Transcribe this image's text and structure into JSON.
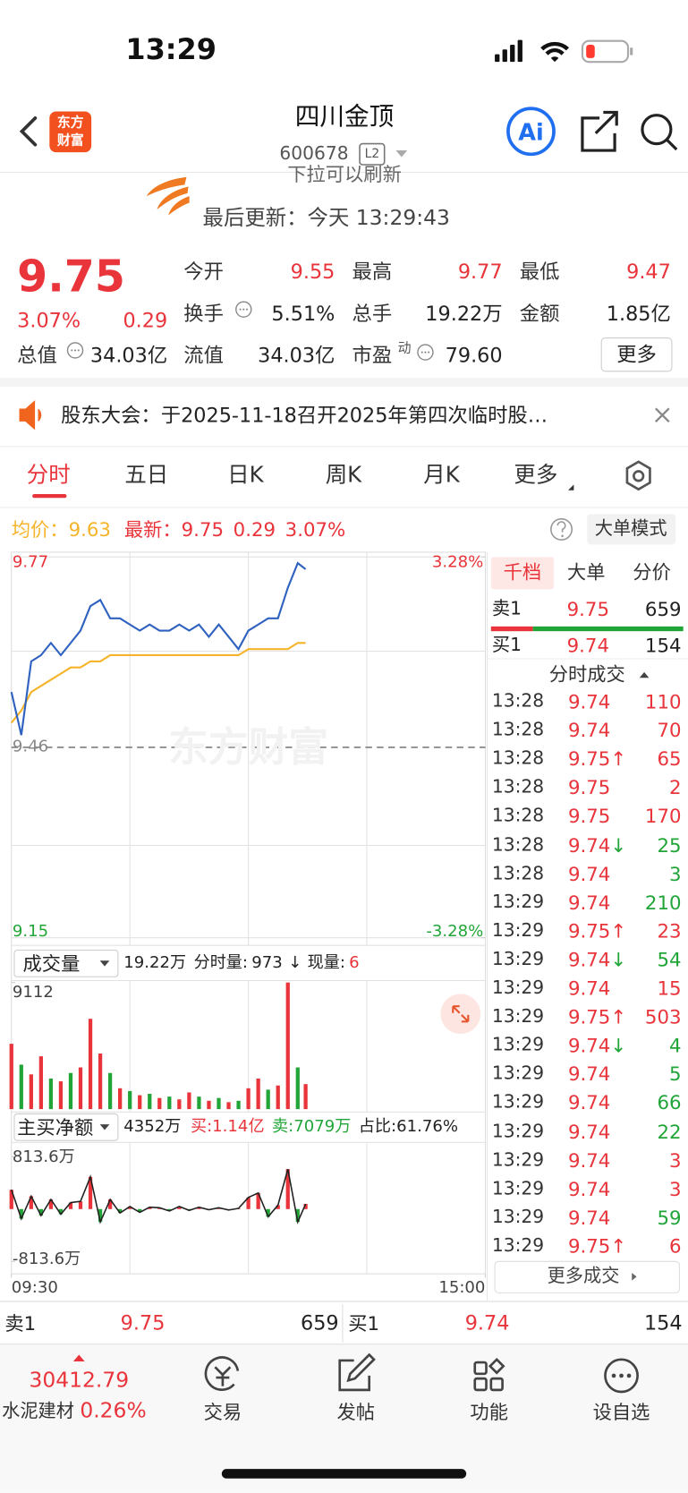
{
  "status_bar": {
    "time": "13:29"
  },
  "header": {
    "logo": [
      "东方",
      "财富"
    ],
    "name": "四川金顶",
    "code": "600678",
    "level": "L2",
    "ai": "Ai"
  },
  "refresh": {
    "hint": "下拉可以刷新",
    "last_update": "最后更新：今天 13:29:43"
  },
  "quote": {
    "price": "9.75",
    "change_pct": "3.07%",
    "change": "0.29",
    "stats": [
      {
        "label": "今开",
        "value": "9.55"
      },
      {
        "label": "最高",
        "value": "9.77"
      },
      {
        "label": "最低",
        "value": "9.47"
      },
      {
        "label": "换手",
        "value": "5.51%"
      },
      {
        "label": "总手",
        "value": "19.22万"
      },
      {
        "label": "金额",
        "value": "1.85亿"
      },
      {
        "label": "总值",
        "value": "34.03亿"
      },
      {
        "label": "流值",
        "value": "34.03亿"
      },
      {
        "label": "市盈",
        "sup": "动",
        "value": "79.60"
      }
    ],
    "more": "更多"
  },
  "notice": {
    "text": "股东大会：于2025-11-18召开2025年第四次临时股…"
  },
  "tabs": [
    "分时",
    "五日",
    "日K",
    "周K",
    "月K",
    "更多"
  ],
  "summary": {
    "avg_label": "均价：",
    "avg": "9.63",
    "latest_label": "最新：",
    "latest": "9.75",
    "change": "0.29",
    "change_pct": "3.07%",
    "mode": "大单模式"
  },
  "price_chart": {
    "watermark": "东方财富",
    "xlim": [
      0,
      240
    ],
    "xticks": [
      {
        "value": 0,
        "label": "09:30"
      },
      {
        "value": 240,
        "label": "15:00"
      }
    ],
    "ylim": [
      9.15,
      9.77
    ],
    "yticks": [
      9.15,
      9.46,
      9.77
    ],
    "y2lim": [
      -3.28,
      3.28
    ],
    "y2ticks": [
      {
        "value": -3.28,
        "label": "-3.28%"
      },
      {
        "value": 3.28,
        "label": "3.28%"
      }
    ],
    "x": [
      0,
      5,
      10,
      15,
      20,
      25,
      30,
      35,
      40,
      45,
      50,
      55,
      60,
      65,
      70,
      75,
      80,
      85,
      90,
      95,
      100,
      105,
      110,
      115,
      120,
      125,
      130,
      135,
      140,
      145,
      149
    ],
    "price": {
      "color": "#2f62c0",
      "values": [
        9.55,
        9.48,
        9.6,
        9.61,
        9.63,
        9.61,
        9.63,
        9.65,
        9.69,
        9.7,
        9.67,
        9.67,
        9.66,
        9.65,
        9.66,
        9.65,
        9.65,
        9.66,
        9.65,
        9.66,
        9.64,
        9.66,
        9.64,
        9.62,
        9.65,
        9.66,
        9.67,
        9.67,
        9.72,
        9.76,
        9.75
      ]
    },
    "avg": {
      "color": "#f5b42a",
      "values": [
        9.5,
        9.52,
        9.55,
        9.56,
        9.57,
        9.58,
        9.59,
        9.59,
        9.6,
        9.6,
        9.61,
        9.61,
        9.61,
        9.61,
        9.61,
        9.61,
        9.61,
        9.61,
        9.61,
        9.61,
        9.61,
        9.61,
        9.61,
        9.61,
        9.62,
        9.62,
        9.62,
        9.62,
        9.62,
        9.63,
        9.63
      ]
    }
  },
  "volume_chart": {
    "selector": "成交量",
    "total": "19.22万",
    "minute_label": "分时量:",
    "minute_value": "973",
    "minute_arrow": "↓",
    "current_label": "现量:",
    "current_value": "6",
    "ylim": [
      0,
      9112
    ],
    "yticks": [
      9112
    ],
    "x": [
      0,
      5,
      10,
      15,
      20,
      25,
      30,
      35,
      40,
      45,
      50,
      55,
      60,
      65,
      70,
      75,
      80,
      85,
      90,
      95,
      100,
      105,
      110,
      115,
      120,
      125,
      130,
      135,
      140,
      145,
      149
    ],
    "values": [
      4700,
      3200,
      2500,
      3800,
      2200,
      2000,
      2600,
      3000,
      6500,
      4000,
      2600,
      1500,
      1300,
      1000,
      1100,
      800,
      900,
      700,
      1200,
      900,
      600,
      800,
      500,
      600,
      1500,
      2200,
      1400,
      1700,
      9112,
      3000,
      1800
    ],
    "up": [
      true,
      false,
      true,
      true,
      false,
      true,
      false,
      true,
      true,
      true,
      false,
      true,
      false,
      true,
      false,
      true,
      false,
      true,
      true,
      false,
      true,
      false,
      true,
      false,
      true,
      true,
      false,
      true,
      true,
      false,
      true
    ],
    "up_color": "#e8343a",
    "down_color": "#22a538"
  },
  "flow_chart": {
    "selector": "主买净额",
    "net": "4352万",
    "buy": "买:1.14亿",
    "sell": "卖:7079万",
    "ratio": "占比:61.76%",
    "ylim": [
      -813.6,
      813.6
    ],
    "yticks": [
      {
        "value": -813.6,
        "label": "-813.6万"
      },
      {
        "value": 813.6,
        "label": "813.6万"
      }
    ],
    "x": [
      0,
      5,
      10,
      15,
      20,
      25,
      30,
      35,
      40,
      45,
      50,
      55,
      60,
      65,
      70,
      75,
      80,
      85,
      90,
      95,
      100,
      105,
      110,
      115,
      120,
      125,
      130,
      135,
      140,
      145,
      149
    ],
    "values": [
      300,
      -150,
      200,
      -100,
      150,
      -80,
      100,
      120,
      500,
      -200,
      150,
      -60,
      40,
      -50,
      30,
      20,
      -30,
      40,
      -20,
      30,
      -10,
      20,
      -15,
      10,
      180,
      250,
      -120,
      60,
      620,
      -200,
      80
    ]
  },
  "order_book": {
    "tabs": [
      "千档",
      "大单",
      "分价"
    ],
    "sell1": {
      "label": "卖1",
      "price": "9.75",
      "volume": "659"
    },
    "buy1": {
      "label": "买1",
      "price": "9.74",
      "volume": "154"
    },
    "trades_title": "分时成交",
    "trades": [
      {
        "time": "13:28",
        "price": "9.74",
        "volume": "110",
        "up": true
      },
      {
        "time": "13:28",
        "price": "9.74",
        "volume": "70",
        "up": true
      },
      {
        "time": "13:28",
        "price": "9.75",
        "arrow": "↑",
        "volume": "65",
        "up": true
      },
      {
        "time": "13:28",
        "price": "9.75",
        "volume": "2",
        "up": true
      },
      {
        "time": "13:28",
        "price": "9.75",
        "volume": "170",
        "up": true
      },
      {
        "time": "13:28",
        "price": "9.74",
        "arrow": "↓",
        "volume": "25",
        "up": false
      },
      {
        "time": "13:28",
        "price": "9.74",
        "volume": "3",
        "up": false
      },
      {
        "time": "13:29",
        "price": "9.74",
        "volume": "210",
        "up": false
      },
      {
        "time": "13:29",
        "price": "9.75",
        "arrow": "↑",
        "volume": "23",
        "up": true
      },
      {
        "time": "13:29",
        "price": "9.74",
        "arrow": "↓",
        "volume": "54",
        "up": false
      },
      {
        "time": "13:29",
        "price": "9.74",
        "volume": "15",
        "up": true
      },
      {
        "time": "13:29",
        "price": "9.75",
        "arrow": "↑",
        "volume": "503",
        "up": true
      },
      {
        "time": "13:29",
        "price": "9.74",
        "arrow": "↓",
        "volume": "4",
        "up": false
      },
      {
        "time": "13:29",
        "price": "9.74",
        "volume": "5",
        "up": false
      },
      {
        "time": "13:29",
        "price": "9.74",
        "volume": "66",
        "up": false
      },
      {
        "time": "13:29",
        "price": "9.74",
        "volume": "22",
        "up": false
      },
      {
        "time": "13:29",
        "price": "9.74",
        "volume": "3",
        "up": true
      },
      {
        "time": "13:29",
        "price": "9.74",
        "volume": "3",
        "up": true
      },
      {
        "time": "13:29",
        "price": "9.74",
        "volume": "59",
        "up": false
      },
      {
        "time": "13:29",
        "price": "9.75",
        "arrow": "↑",
        "volume": "6",
        "up": true
      }
    ],
    "more": "更多成交"
  },
  "bottom": {
    "index_value": "30412.79",
    "index_name": "水泥建材",
    "index_change": "0.26%",
    "nav": [
      "交易",
      "发帖",
      "功能",
      "设自选"
    ]
  }
}
